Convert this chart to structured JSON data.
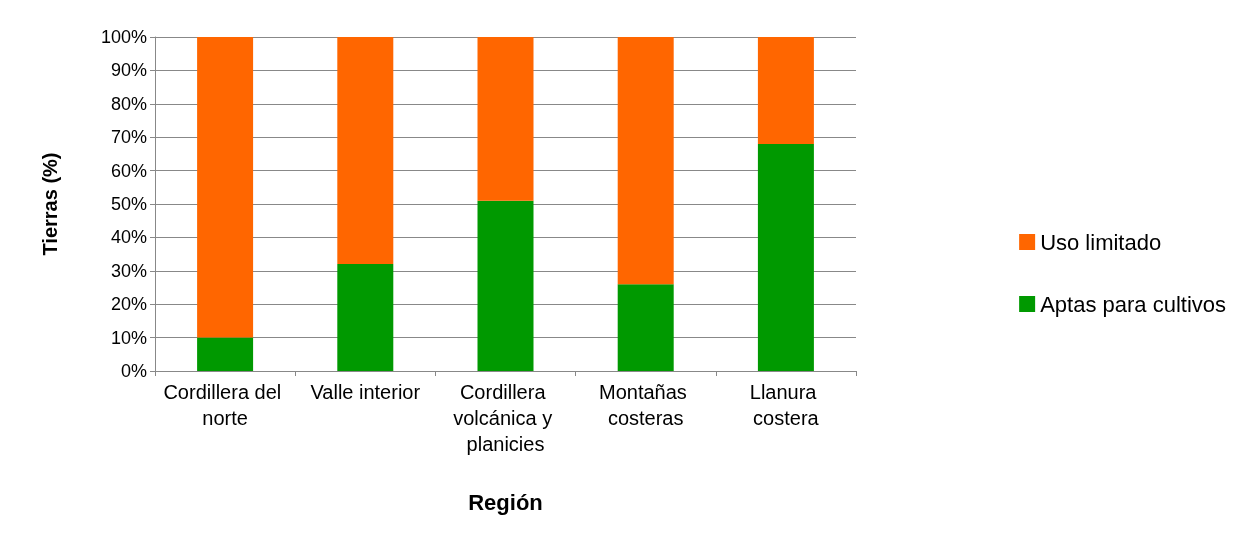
{
  "chart_data": {
    "type": "bar",
    "stacked": true,
    "categories": [
      "Cordillera del norte",
      "Valle interior",
      "Cordillera volcánica y planicies",
      "Montañas costeras",
      "Llanura costera"
    ],
    "series": [
      {
        "name": "Aptas para cultivos",
        "color": "#009900",
        "values": [
          10,
          32,
          51,
          26,
          68
        ]
      },
      {
        "name": "Uso limitado",
        "color": "#ff6600",
        "values": [
          90,
          68,
          49,
          74,
          32
        ]
      }
    ],
    "xlabel": "Región",
    "ylabel": "Tierras (%)",
    "ylim": [
      0,
      100
    ],
    "yticks": [
      {
        "value": 0,
        "label": "0%"
      },
      {
        "value": 10,
        "label": "10%"
      },
      {
        "value": 20,
        "label": "20%"
      },
      {
        "value": 30,
        "label": "30%"
      },
      {
        "value": 40,
        "label": "40%"
      },
      {
        "value": 50,
        "label": "50%"
      },
      {
        "value": 60,
        "label": "60%"
      },
      {
        "value": 70,
        "label": "70%"
      },
      {
        "value": 80,
        "label": "80%"
      },
      {
        "value": 90,
        "label": "90%"
      },
      {
        "value": 100,
        "label": "100%"
      }
    ],
    "grid": "y",
    "legend": "right"
  }
}
